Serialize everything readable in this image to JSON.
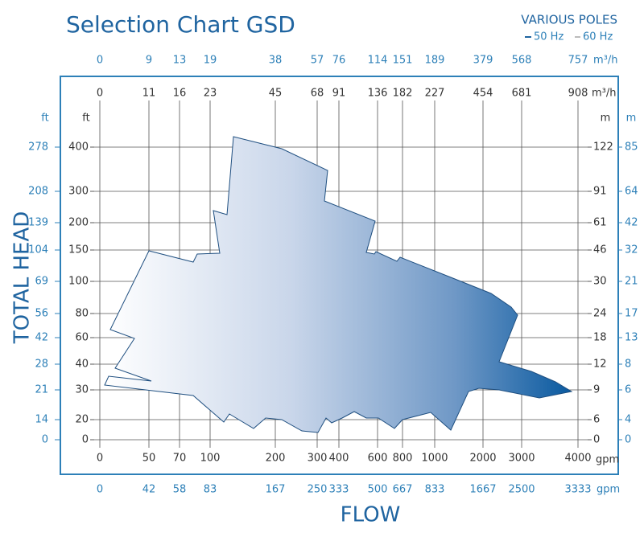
{
  "header": {
    "title": "Selection Chart GSD",
    "subtitle": "VARIOUS POLES",
    "legend": [
      "50 Hz",
      "60 Hz"
    ]
  },
  "y_axis": {
    "label": "TOTAL HEAD",
    "left_outer": {
      "unit": "ft",
      "ticks": [
        278,
        208,
        139,
        104,
        69,
        56,
        42,
        28,
        21,
        14,
        0
      ]
    },
    "left_inner": {
      "unit": "ft",
      "ticks": [
        400,
        300,
        200,
        150,
        100,
        80,
        60,
        40,
        30,
        20,
        0
      ]
    },
    "right_inner": {
      "unit": "m",
      "ticks": [
        122,
        91,
        61,
        46,
        30,
        24,
        18,
        12,
        9,
        6,
        0
      ]
    },
    "right_outer": {
      "unit": "m",
      "ticks": [
        85,
        64,
        42,
        32,
        21,
        17,
        13,
        8,
        6,
        4,
        0
      ]
    }
  },
  "x_axis": {
    "label": "FLOW",
    "top_outer": {
      "unit": "m³/h",
      "ticks": [
        0,
        9,
        13,
        19,
        38,
        57,
        76,
        114,
        151,
        189,
        379,
        568,
        757
      ]
    },
    "top_inner": {
      "unit": "m³/h",
      "ticks": [
        0,
        11,
        16,
        23,
        45,
        68,
        91,
        136,
        182,
        227,
        454,
        681,
        908
      ]
    },
    "bottom_inner": {
      "unit": "gpm",
      "ticks": [
        0,
        50,
        70,
        100,
        200,
        300,
        400,
        600,
        800,
        1000,
        2000,
        3000,
        4000
      ]
    },
    "bottom_outer": {
      "unit": "gpm",
      "ticks": [
        0,
        42,
        58,
        83,
        167,
        250,
        333,
        500,
        667,
        833,
        1667,
        2500,
        3333
      ]
    }
  }
}
